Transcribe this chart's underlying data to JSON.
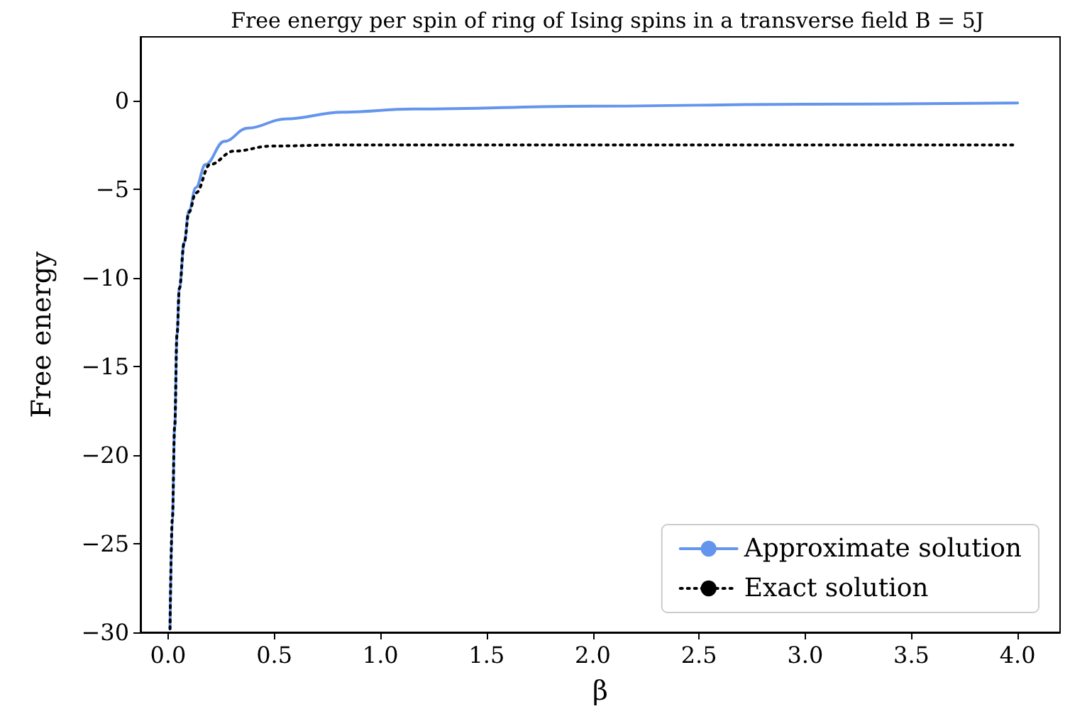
{
  "chart_data": {
    "type": "line",
    "title": "Free energy per spin of ring of Ising spins in a transverse field B = 5J",
    "xlabel": "β",
    "ylabel": "Free energy",
    "xlim": [
      -0.13,
      4.2
    ],
    "ylim": [
      -30,
      3.6
    ],
    "xticks": [
      {
        "value": 0,
        "label": "0.0"
      },
      {
        "value": 0.5,
        "label": "0.5"
      },
      {
        "value": 1,
        "label": "1.0"
      },
      {
        "value": 1.5,
        "label": "1.5"
      },
      {
        "value": 2,
        "label": "2.0"
      },
      {
        "value": 2.5,
        "label": "2.5"
      },
      {
        "value": 3,
        "label": "3.0"
      },
      {
        "value": 3.5,
        "label": "3.5"
      },
      {
        "value": 4,
        "label": "4.0"
      }
    ],
    "yticks": [
      {
        "value": -30,
        "label": "−30"
      },
      {
        "value": -25,
        "label": "−25"
      },
      {
        "value": -20,
        "label": "−20"
      },
      {
        "value": -15,
        "label": "−15"
      },
      {
        "value": -10,
        "label": "−10"
      },
      {
        "value": -5,
        "label": "−5"
      },
      0
    ],
    "legend": "bottom right",
    "series": [
      {
        "name": "Approximate solution",
        "color": "#6495ed",
        "line_style": "solid",
        "x": [
          0.009,
          0.02,
          0.031,
          0.042,
          0.053,
          0.076,
          0.098,
          0.131,
          0.176,
          0.264,
          0.375,
          0.553,
          0.82,
          1.153,
          2.0,
          3.0,
          4.0
        ],
        "values": [
          -29.8,
          -23.6,
          -18.4,
          -13.2,
          -10.6,
          -8.0,
          -6.2,
          -4.9,
          -3.6,
          -2.3,
          -1.55,
          -1.03,
          -0.65,
          -0.47,
          -0.31,
          -0.2,
          -0.13
        ]
      },
      {
        "name": "Exact solution",
        "color": "#000000",
        "line_style": "dotted",
        "x": [
          0.009,
          0.02,
          0.031,
          0.042,
          0.053,
          0.076,
          0.098,
          0.131,
          0.198,
          0.309,
          0.487,
          0.8,
          1.5,
          2.5,
          4.0
        ],
        "values": [
          -29.8,
          -23.6,
          -18.4,
          -13.2,
          -10.6,
          -8.0,
          -6.3,
          -5.2,
          -3.6,
          -2.85,
          -2.56,
          -2.5,
          -2.5,
          -2.5,
          -2.5
        ]
      }
    ]
  }
}
